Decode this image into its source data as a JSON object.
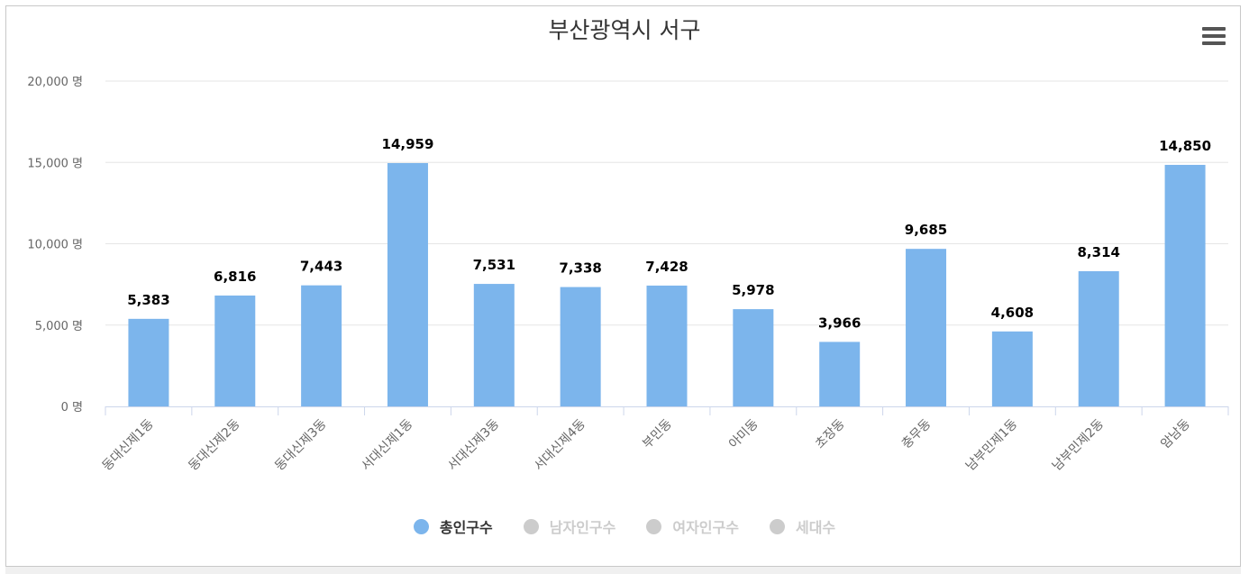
{
  "title": "부산광역시 서구",
  "menu_icon": "hamburger-menu-icon",
  "colors": {
    "bar": "#7cb5ec",
    "legend_active_text": "#333333",
    "legend_inactive": "#cccccc",
    "grid": "#e6e6e6",
    "axis_text": "#666666",
    "data_label": "#000000"
  },
  "chart_data": {
    "type": "bar",
    "title": "부산광역시 서구",
    "categories": [
      "동대신제1동",
      "동대신제2동",
      "동대신제3동",
      "서대신제1동",
      "서대신제3동",
      "서대신제4동",
      "부민동",
      "아미동",
      "초장동",
      "충무동",
      "남부민제1동",
      "남부민제2동",
      "암남동"
    ],
    "series": [
      {
        "name": "총인구수",
        "values": [
          5383,
          6816,
          7443,
          14959,
          7531,
          7338,
          7428,
          5978,
          3966,
          9685,
          4608,
          8314,
          14850
        ],
        "visible": true
      }
    ],
    "data_labels": [
      "5,383",
      "6,816",
      "7,443",
      "14,959",
      "7,531",
      "7,338",
      "7,428",
      "5,978",
      "3,966",
      "9,685",
      "4,608",
      "8,314",
      "14,850"
    ],
    "y_ticks": [
      0,
      5000,
      10000,
      15000,
      20000
    ],
    "y_tick_labels": [
      "0 명",
      "5,000 명",
      "10,000 명",
      "15,000 명",
      "20,000 명"
    ],
    "ylim": [
      0,
      20000
    ],
    "grid": true,
    "legend_position": "bottom-center",
    "xlabel": "",
    "ylabel": ""
  },
  "legend": [
    {
      "label": "총인구수",
      "active": true
    },
    {
      "label": "남자인구수",
      "active": false
    },
    {
      "label": "여자인구수",
      "active": false
    },
    {
      "label": "세대수",
      "active": false
    }
  ]
}
